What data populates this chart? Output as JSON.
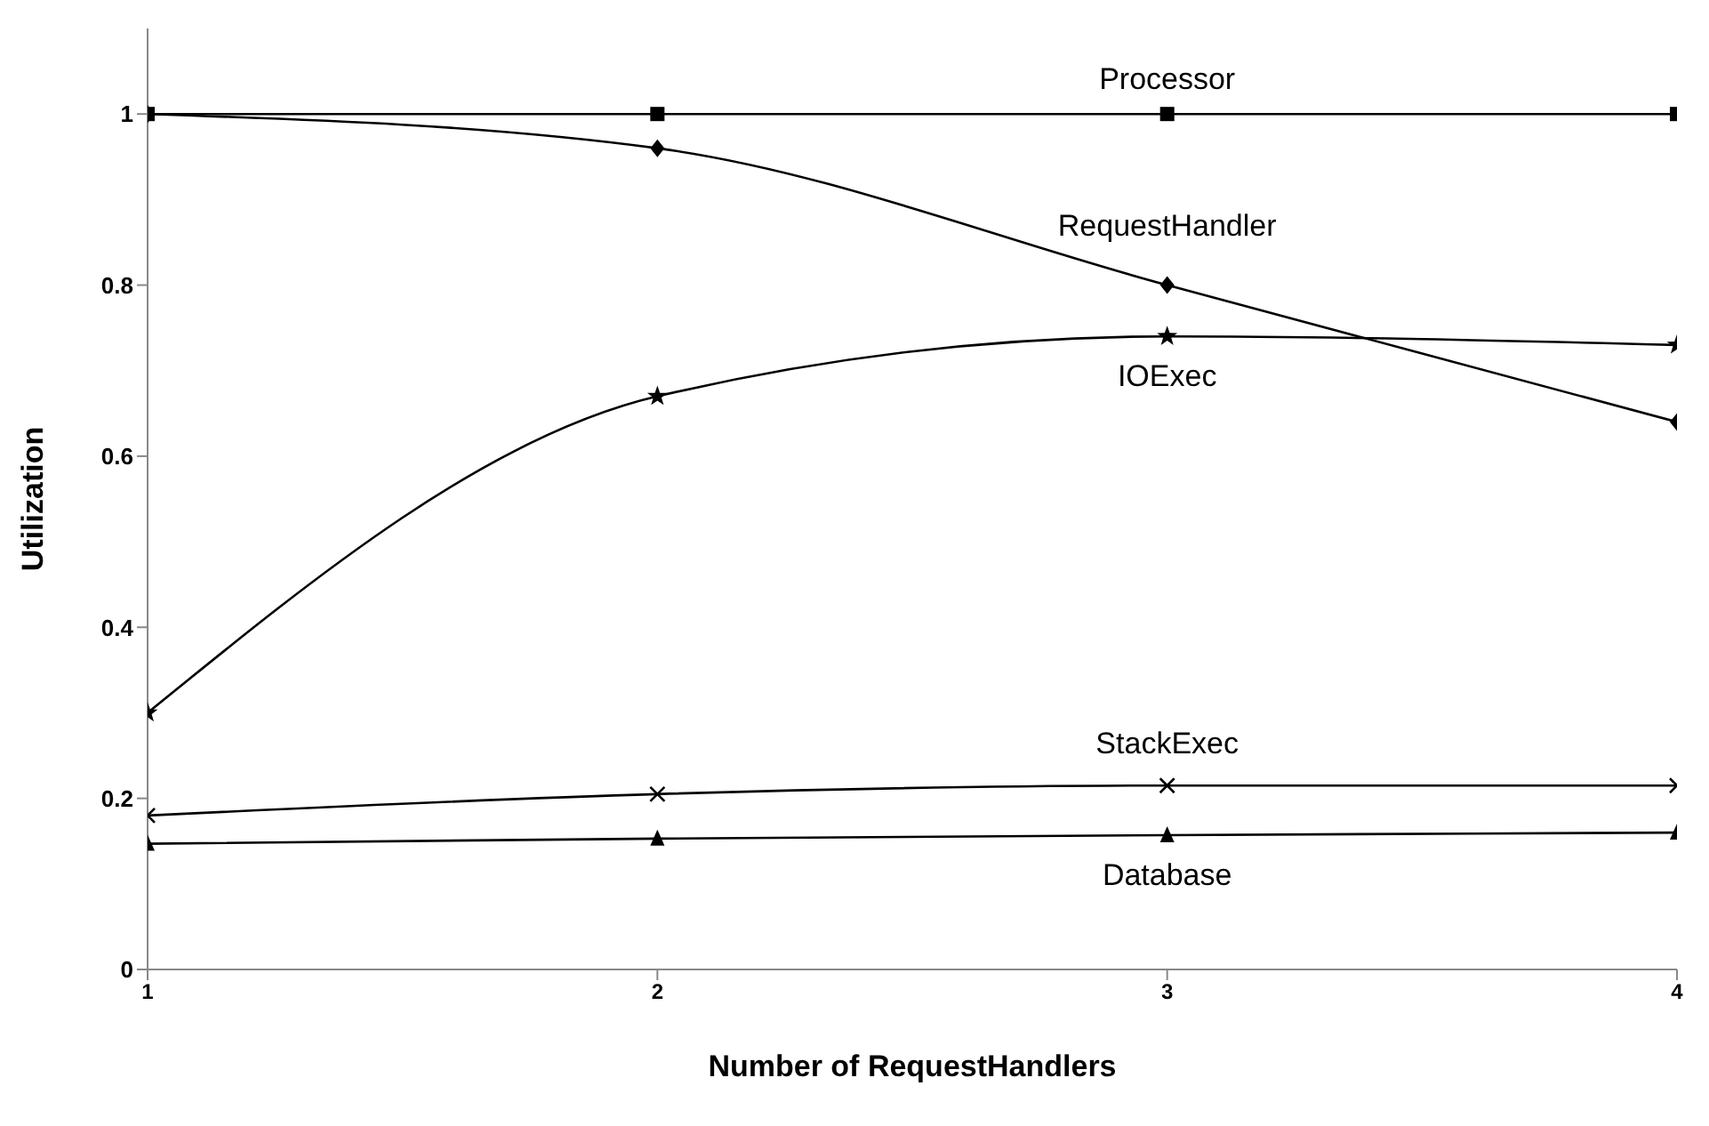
{
  "chart_data": {
    "type": "line",
    "xlabel": "Number of RequestHandlers",
    "ylabel": "Utilization",
    "x": [
      1,
      2,
      3,
      4
    ],
    "xlim": [
      1,
      4
    ],
    "xticks": [
      1,
      2,
      3,
      4
    ],
    "ylim": [
      0,
      1.1
    ],
    "yticks": [
      0,
      0.2,
      0.4,
      0.6,
      0.8,
      1
    ],
    "grid": false,
    "legend": false,
    "series": [
      {
        "name": "Processor",
        "color": "#000000",
        "marker": "square",
        "values": [
          1,
          1,
          1,
          1
        ]
      },
      {
        "name": "RequestHandler",
        "color": "#000000",
        "marker": "diamond",
        "values": [
          1,
          0.96,
          0.8,
          0.64
        ]
      },
      {
        "name": "IOExec",
        "color": "#000000",
        "marker": "star",
        "values": [
          0.3,
          0.67,
          0.74,
          0.73
        ]
      },
      {
        "name": "StackExec",
        "color": "#000000",
        "marker": "cross",
        "values": [
          0.18,
          0.205,
          0.215,
          0.215
        ]
      },
      {
        "name": "Database",
        "color": "#000000",
        "marker": "triangle",
        "values": [
          0.147,
          0.153,
          0.157,
          0.16
        ]
      }
    ]
  }
}
